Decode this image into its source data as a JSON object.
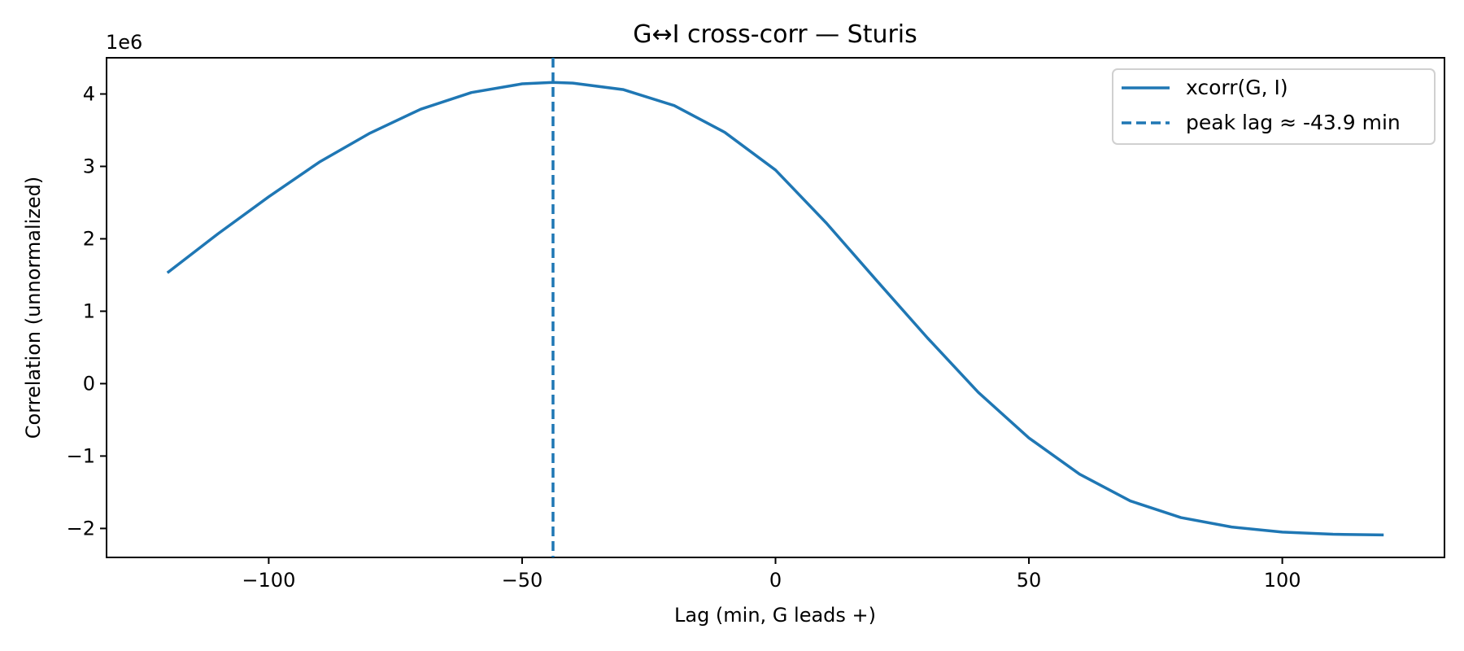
{
  "chart_data": {
    "type": "line",
    "title": "G↔I cross-corr — Sturis",
    "xlabel": "Lag (min, G leads +)",
    "ylabel": "Correlation (unnormalized)",
    "y_offset_label": "1e6",
    "xlim": [
      -132,
      132
    ],
    "ylim": [
      -2.4,
      4.5
    ],
    "x_ticks": [
      -100,
      -50,
      0,
      50,
      100
    ],
    "x_tick_labels": [
      "−100",
      "−50",
      "0",
      "50",
      "100"
    ],
    "y_ticks": [
      -2,
      -1,
      0,
      1,
      2,
      3,
      4
    ],
    "y_tick_labels": [
      "−2",
      "−1",
      "0",
      "1",
      "2",
      "3",
      "4"
    ],
    "grid": false,
    "legend_position": "top-right",
    "series": [
      {
        "name": "xcorr(G, I)",
        "color": "#1f77b4",
        "style": "solid",
        "x": [
          -120,
          -110,
          -100,
          -90,
          -80,
          -70,
          -60,
          -50,
          -43.9,
          -40,
          -30,
          -20,
          -10,
          0,
          10,
          20,
          30,
          40,
          50,
          60,
          70,
          80,
          90,
          100,
          110,
          120
        ],
        "y": [
          1.53,
          2.07,
          2.58,
          3.06,
          3.46,
          3.79,
          4.02,
          4.14,
          4.16,
          4.15,
          4.06,
          3.84,
          3.47,
          2.95,
          2.22,
          1.42,
          0.63,
          -0.12,
          -0.75,
          -1.25,
          -1.62,
          -1.85,
          -1.98,
          -2.05,
          -2.08,
          -2.09
        ]
      },
      {
        "name": "peak lag ≈ -43.9 min",
        "color": "#1f77b4",
        "style": "dashed",
        "vline_x": -43.9
      }
    ]
  }
}
